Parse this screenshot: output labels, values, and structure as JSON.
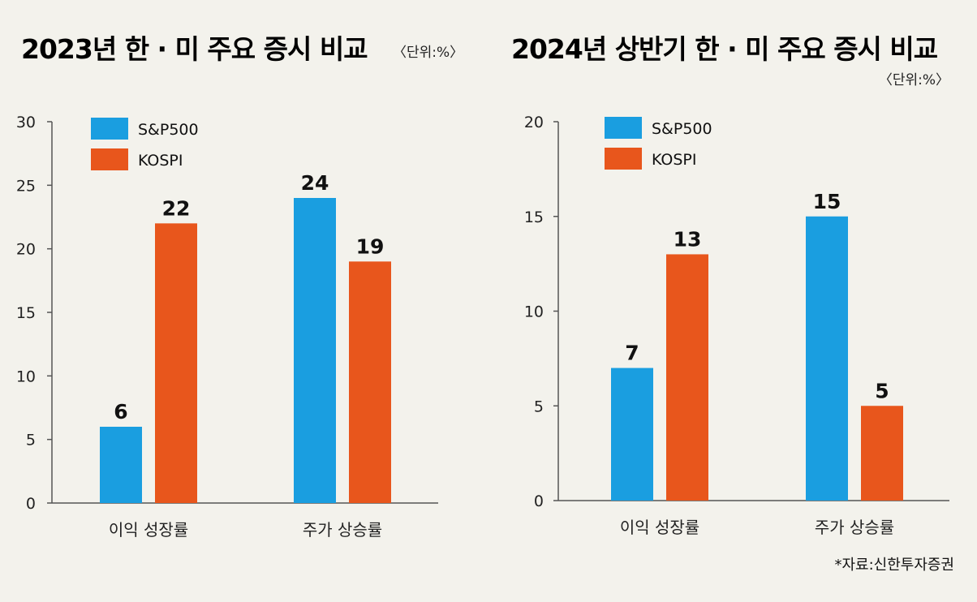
{
  "chart_data": [
    {
      "type": "bar",
      "title": "2023년 한 · 미 주요 증시 비교",
      "unit": "〈단위:%〉",
      "categories": [
        "이익 성장률",
        "주가 상승률"
      ],
      "series": [
        {
          "name": "S&P500",
          "values": [
            6,
            24
          ],
          "color": "#1a9ee0",
          "labels": [
            "6",
            "24"
          ]
        },
        {
          "name": "KOSPI",
          "values": [
            22,
            19
          ],
          "color": "#e8561c",
          "labels": [
            "22",
            "19"
          ]
        }
      ],
      "ylim": [
        0,
        30
      ],
      "yticks": [
        0,
        5,
        10,
        15,
        20,
        25,
        30
      ],
      "legend_position": "top-left"
    },
    {
      "type": "bar",
      "title": "2024년 상반기 한 · 미 주요 증시 비교",
      "unit": "〈단위:%〉",
      "categories": [
        "이익 성장률",
        "주가 상승률"
      ],
      "series": [
        {
          "name": "S&P500",
          "values": [
            7,
            15
          ],
          "color": "#1a9ee0",
          "labels": [
            "7",
            "15"
          ]
        },
        {
          "name": "KOSPI",
          "values": [
            13,
            5
          ],
          "color": "#e8561c",
          "labels": [
            "13",
            "5"
          ]
        }
      ],
      "ylim": [
        0,
        20
      ],
      "yticks": [
        0,
        5,
        10,
        15,
        20
      ],
      "legend_position": "top-left"
    }
  ],
  "source": "*자료:신한투자증권"
}
